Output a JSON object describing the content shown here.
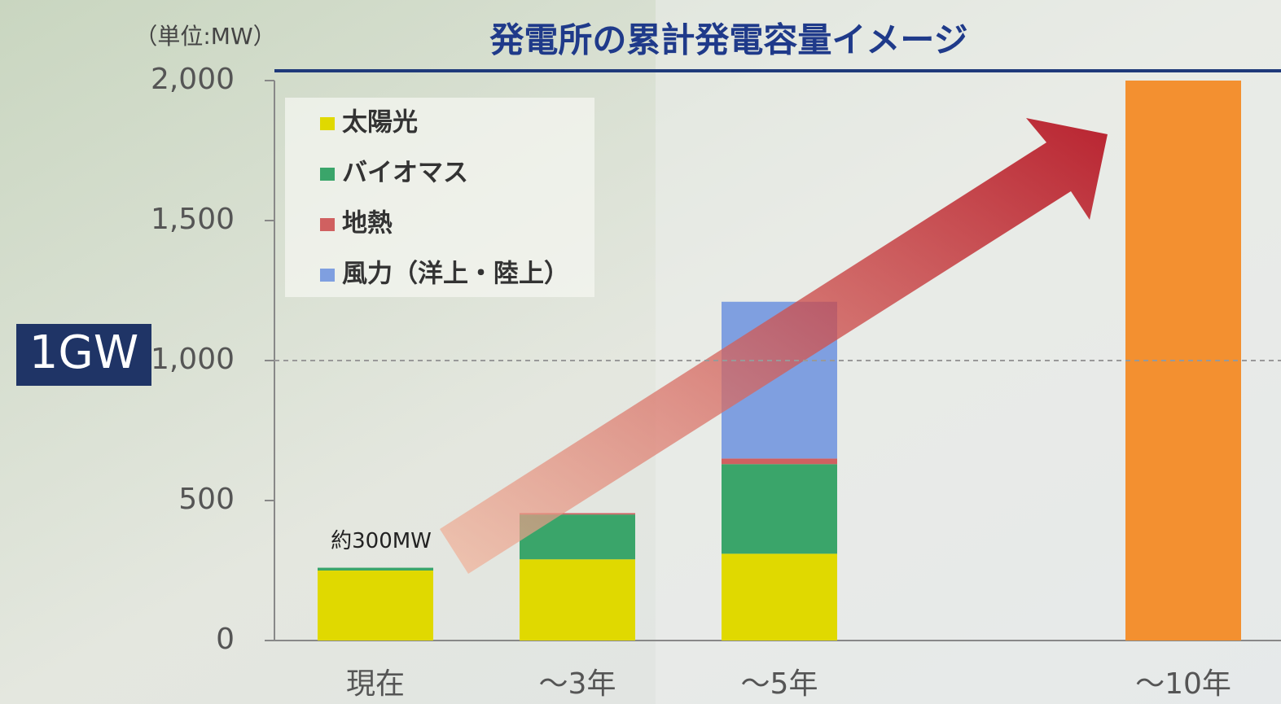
{
  "chart_data": {
    "type": "stacked_bar",
    "title": "発電所の累計発電容量イメージ",
    "unit_label": "（単位:MW）",
    "categories": [
      "現在",
      "～3年",
      "～5年",
      null,
      "～10年"
    ],
    "series": [
      {
        "name": "太陽光",
        "color": "#e0d900",
        "values": [
          250,
          290,
          310,
          null,
          null
        ]
      },
      {
        "name": "バイオマス",
        "color": "#3aa56a",
        "values": [
          10,
          160,
          320,
          null,
          null
        ]
      },
      {
        "name": "地熱",
        "color": "#d06060",
        "values": [
          null,
          5,
          20,
          null,
          null
        ]
      },
      {
        "name": "風力（洋上・陸上）",
        "color": "#7f9fe0",
        "values": [
          null,
          null,
          560,
          null,
          null
        ]
      },
      {
        "color": "#f39030",
        "values": [
          null,
          null,
          null,
          null,
          2000
        ]
      }
    ],
    "ylim": [
      0,
      2000
    ],
    "yticks": [
      0,
      500,
      {
        "value": 1000,
        "label": "1,000"
      },
      {
        "value": 1500,
        "label": "1,500"
      },
      {
        "value": 2000,
        "label": "2,000"
      }
    ],
    "reference_line": {
      "value": 1000,
      "label": "1GW"
    },
    "annotations": [
      {
        "text": "約300MW",
        "category": 0
      }
    ],
    "legend": "top-left"
  }
}
